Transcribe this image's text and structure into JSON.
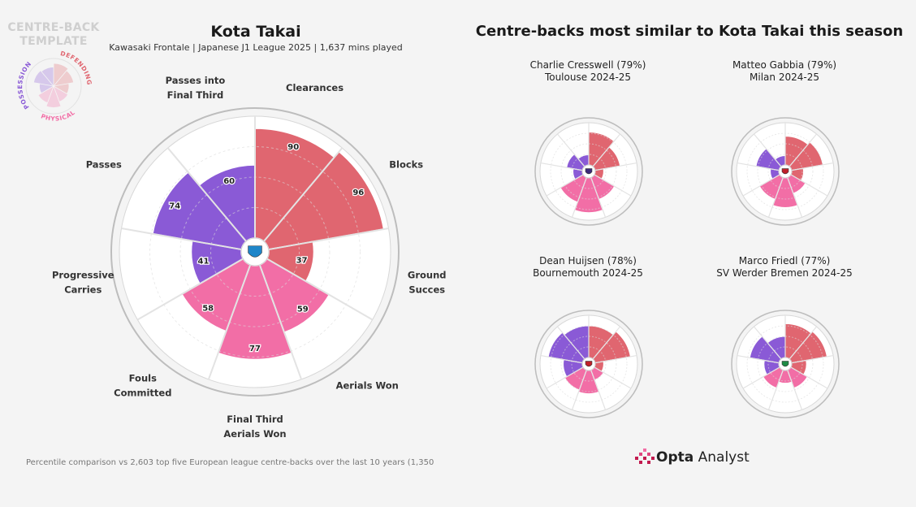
{
  "template": {
    "title_line1": "CENTRE-BACK",
    "title_line2": "TEMPLATE",
    "labels": {
      "possession": "POSSESSION",
      "defending": "DEFENDING",
      "physical": "PHYSICAL"
    }
  },
  "main": {
    "title": "Kota Takai",
    "subtitle": "Kawasaki Frontale | Japanese J1 League 2025 | 1,637 mins played",
    "footnote": "Percentile comparison vs 2,603 top five European league centre-backs over the last 10 years (1,350"
  },
  "comparison": {
    "title": "Centre-backs most similar to Kota Takai this season",
    "players": [
      {
        "line1": "Charlie Cresswell (79%)",
        "line2": "Toulouse 2024-25"
      },
      {
        "line1": "Matteo Gabbia (79%)",
        "line2": "Milan 2024-25"
      },
      {
        "line1": "Dean Huijsen (78%)",
        "line2": "Bournemouth 2024-25"
      },
      {
        "line1": "Marco Friedl (77%)",
        "line2": "SV Werder Bremen 2024-25"
      }
    ]
  },
  "brand": {
    "bold": "Opta",
    "rest": " Analyst"
  },
  "colors": {
    "defending": "#e06670",
    "possession": "#8a5ad6",
    "physical": "#f26ea6",
    "background": "#f4f4f4"
  },
  "chart_data": [
    {
      "type": "radar",
      "title": "Kota Takai",
      "metrics": [
        {
          "label_lines": [
            "Clearances"
          ],
          "value": 90,
          "group": "defending"
        },
        {
          "label_lines": [
            "Blocks"
          ],
          "value": 96,
          "group": "defending"
        },
        {
          "label_lines": [
            "Ground",
            "Succes"
          ],
          "value": 37,
          "group": "defending"
        },
        {
          "label_lines": [
            "Aerials Won"
          ],
          "value": 59,
          "group": "physical"
        },
        {
          "label_lines": [
            "Final Third",
            "Aerials Won"
          ],
          "value": 77,
          "group": "physical"
        },
        {
          "label_lines": [
            "Fouls",
            "Committed"
          ],
          "value": 58,
          "group": "physical"
        },
        {
          "label_lines": [
            "Progressive",
            "Carries"
          ],
          "value": 41,
          "group": "possession"
        },
        {
          "label_lines": [
            "Passes"
          ],
          "value": 74,
          "group": "possession"
        },
        {
          "label_lines": [
            "Passes into",
            "Final Third"
          ],
          "value": 60,
          "group": "possession"
        }
      ],
      "range": [
        0,
        100
      ]
    },
    {
      "type": "radar",
      "title": "Charlie Cresswell (79%)",
      "values": [
        78,
        60,
        20,
        55,
        82,
        62,
        22,
        38,
        24
      ]
    },
    {
      "type": "radar",
      "title": "Matteo Gabbia (79%)",
      "values": [
        68,
        75,
        28,
        40,
        70,
        55,
        20,
        55,
        22
      ]
    },
    {
      "type": "radar",
      "title": "Dean Huijsen (78%)",
      "values": [
        75,
        85,
        20,
        25,
        55,
        50,
        45,
        82,
        75
      ]
    },
    {
      "type": "radar",
      "title": "Marco Friedl (77%)",
      "values": [
        80,
        85,
        35,
        45,
        30,
        45,
        35,
        70,
        50
      ]
    }
  ]
}
